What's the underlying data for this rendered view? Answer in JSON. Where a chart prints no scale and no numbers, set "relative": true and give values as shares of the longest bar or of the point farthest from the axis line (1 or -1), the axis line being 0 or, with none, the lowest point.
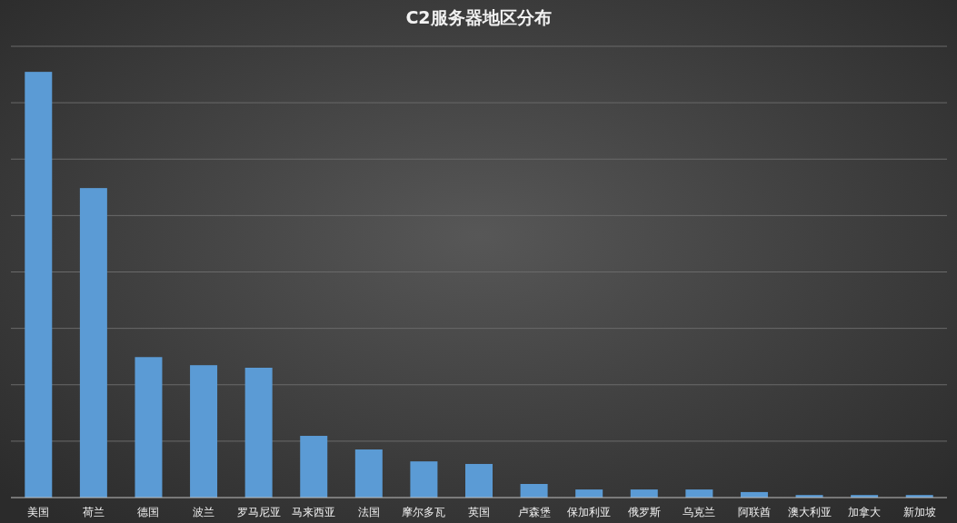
{
  "chart_data": {
    "type": "bar",
    "title": "C2服务器地区分布",
    "relative": true,
    "grid": "y",
    "color": "#5b9bd5",
    "categories": [
      "美国",
      "荷兰",
      "德国",
      "波兰",
      "罗马尼亚",
      "马来西亚",
      "法国",
      "摩尔多瓦",
      "英国",
      "卢森堡",
      "保加利亚",
      "俄罗斯",
      "乌克兰",
      "阿联酋",
      "澳大利亚",
      "加拿大",
      "新加坡"
    ],
    "values": [
      1,
      0.727,
      0.33,
      0.311,
      0.305,
      0.145,
      0.113,
      0.085,
      0.079,
      0.032,
      0.019,
      0.019,
      0.019,
      0.013,
      0.006,
      0.006,
      0.006
    ]
  }
}
